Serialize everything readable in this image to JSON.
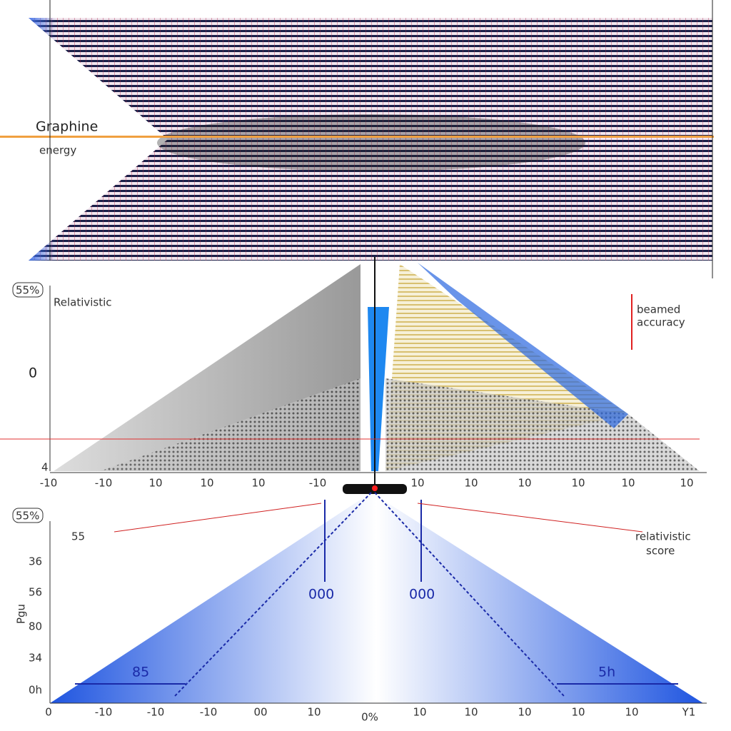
{
  "top": {
    "label_1": "Graphine",
    "label_2": "energy"
  },
  "middle": {
    "badge": "55%",
    "label": "Relativistic",
    "y_marker": "0",
    "bottom_marker": "4",
    "annotation_1": "beamed",
    "annotation_2": "accuracy",
    "xticks": [
      "-10",
      "-10",
      "10",
      "10",
      "10",
      "-10",
      "10",
      "10",
      "10",
      "10",
      "10",
      "10"
    ]
  },
  "bottom": {
    "badge": "55%",
    "y_label": "Pgu",
    "yticks": [
      "55",
      "36",
      "56",
      "80",
      "34",
      "0h"
    ],
    "left_value": "85",
    "center_left": "000",
    "center_right": "000",
    "right_value": "5h",
    "legend_1": "relativistic",
    "legend_2": "score",
    "xticks": [
      "0",
      "-10",
      "-10",
      "-10",
      "00",
      "10",
      "0%",
      "10",
      "10",
      "10",
      "10",
      "10",
      "Y1"
    ]
  }
}
